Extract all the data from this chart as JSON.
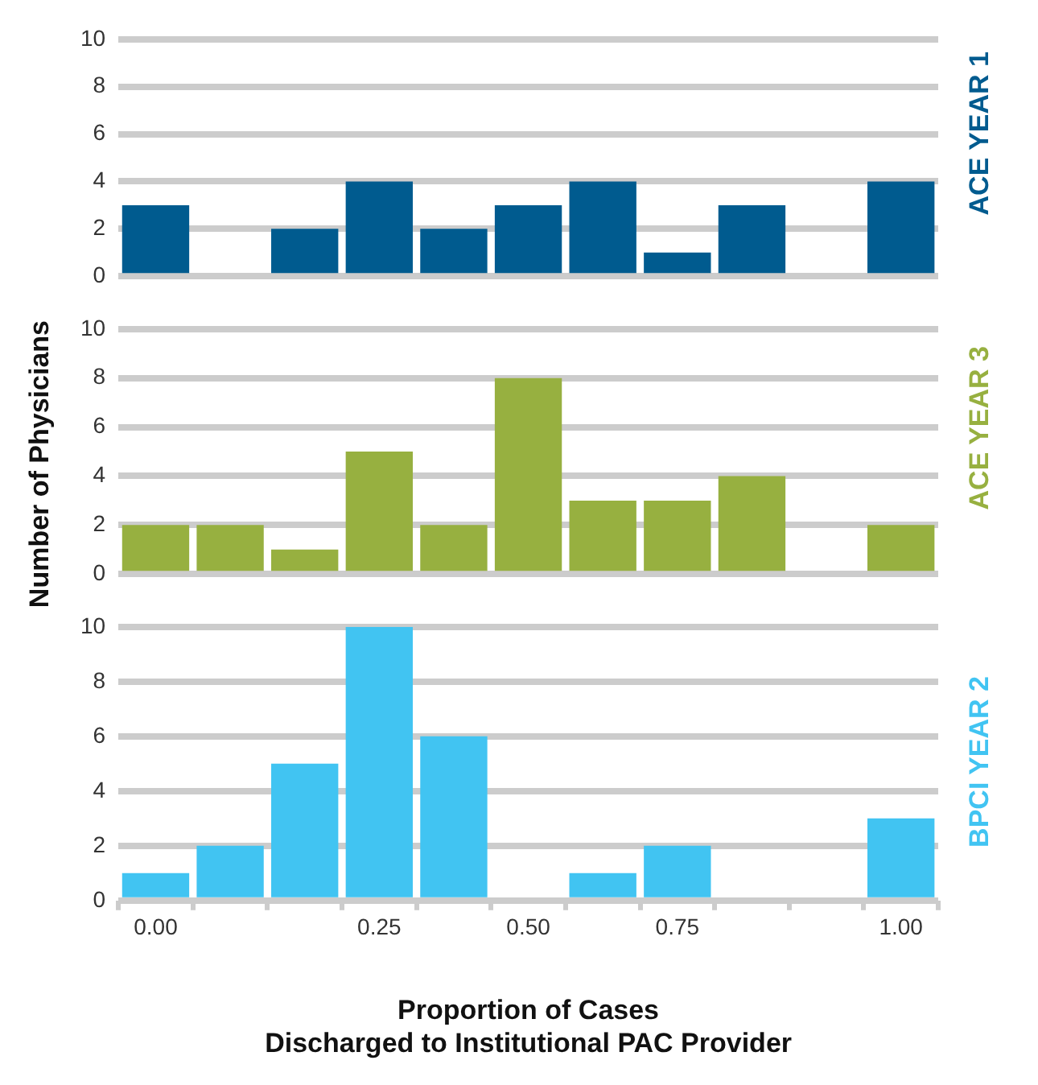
{
  "chart_data": [
    {
      "type": "bar",
      "categories": [
        "0.00",
        null,
        null,
        "0.25",
        null,
        "0.50",
        null,
        "0.75",
        null,
        null,
        "1.00"
      ],
      "series": [
        {
          "name": "ACE YEAR 1",
          "color": "#005b8f",
          "values": [
            3,
            0,
            2,
            4,
            2,
            3,
            4,
            1,
            3,
            0,
            4
          ]
        }
      ],
      "ylim": [
        0,
        10
      ],
      "yticks": [
        0,
        2,
        4,
        6,
        8,
        10
      ],
      "grid": "y",
      "legend": false,
      "tick_labels": "y"
    },
    {
      "type": "bar",
      "categories": [
        "0.00",
        null,
        null,
        "0.25",
        null,
        "0.50",
        null,
        "0.75",
        null,
        null,
        "1.00"
      ],
      "ylabel": "Number of Physicians",
      "series": [
        {
          "name": "ACE YEAR 3",
          "color": "#97b040",
          "values": [
            2,
            2,
            1,
            5,
            2,
            8,
            3,
            3,
            4,
            0,
            2
          ]
        }
      ],
      "ylim": [
        0,
        10
      ],
      "yticks": [
        0,
        2,
        4,
        6,
        8,
        10
      ],
      "grid": "y",
      "legend": false,
      "tick_labels": "y"
    },
    {
      "type": "bar",
      "categories": [
        "0.00",
        null,
        null,
        "0.25",
        null,
        "0.50",
        null,
        "0.75",
        null,
        null,
        "1.00"
      ],
      "xlabel": "Proportion of Cases\nDischarged to Institutional PAC Provider",
      "series": [
        {
          "name": "BPCI YEAR 2",
          "color": "#41c4f2",
          "values": [
            1,
            2,
            5,
            10,
            6,
            0,
            1,
            2,
            0,
            0,
            3
          ]
        }
      ],
      "ylim": [
        0,
        10
      ],
      "yticks": [
        0,
        2,
        4,
        6,
        8,
        10
      ],
      "grid": "y",
      "legend": false
    }
  ]
}
